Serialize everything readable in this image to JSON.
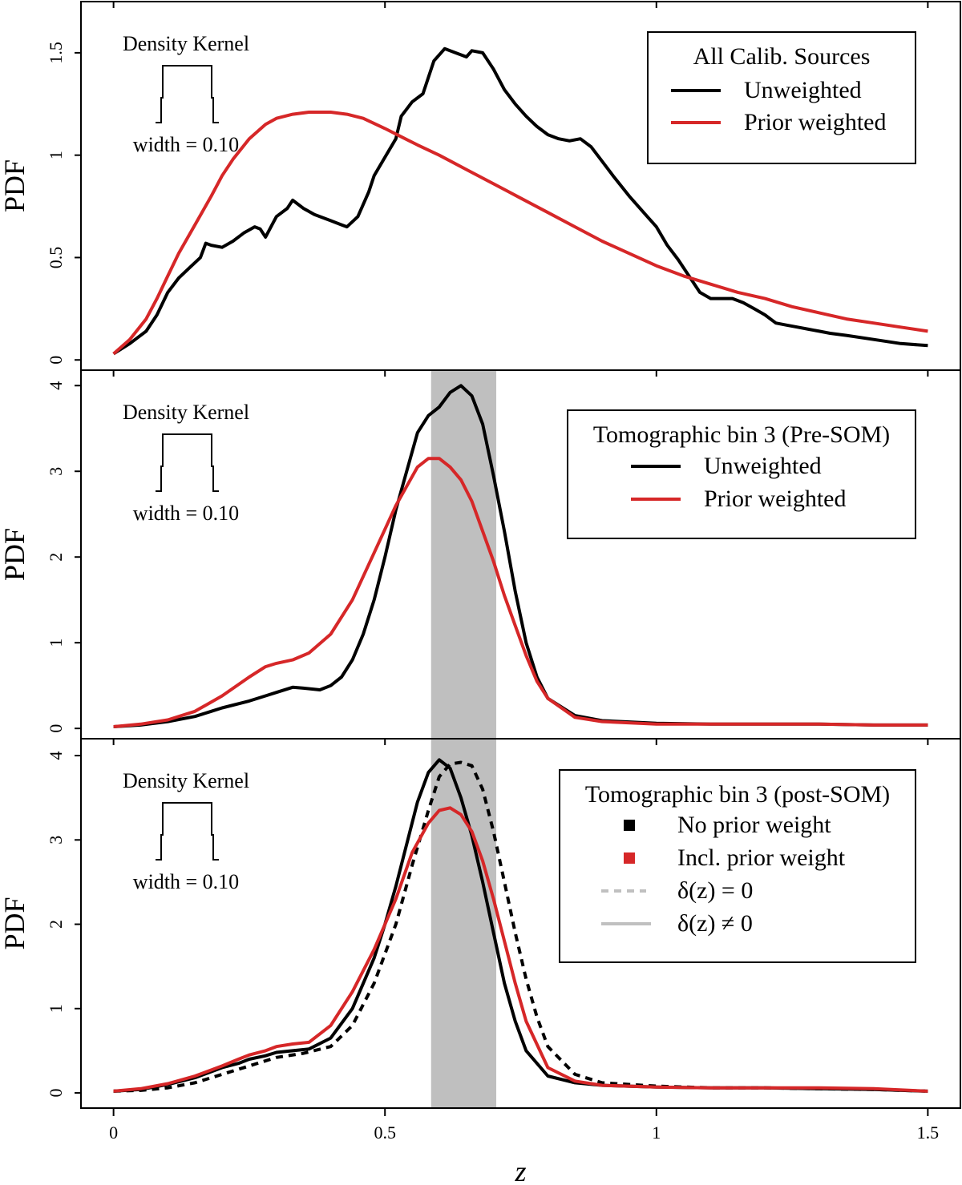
{
  "colors": {
    "black": "#000000",
    "red": "#d62728",
    "band": "#bfbfbf",
    "dashed_legend": "#c0c0c0",
    "solid_legend": "#c0c0c0"
  },
  "x_axis": {
    "label": "z",
    "ticks": [
      0,
      0.5,
      1,
      1.5
    ],
    "tick_labels": [
      "0",
      "0.5",
      "1",
      "1.5"
    ],
    "xlim": [
      -0.06,
      1.56
    ]
  },
  "y_label": "PDF",
  "chart_data": [
    {
      "type": "line",
      "title": "",
      "ylabel": "PDF",
      "xlabel": "z",
      "ylim": [
        -0.05,
        1.75
      ],
      "yticks": [
        0,
        0.5,
        1,
        1.5
      ],
      "ytick_labels": [
        "0",
        "0.5",
        "1",
        "1.5"
      ],
      "highlight_band": null,
      "kernel": {
        "title": "Density Kernel",
        "label": "width = 0.10"
      },
      "legend": {
        "title": "All Calib. Sources",
        "entries": [
          {
            "label": "Unweighted",
            "color": "#000000",
            "style": "line"
          },
          {
            "label": "Prior weighted",
            "color": "#d62728",
            "style": "line"
          }
        ]
      },
      "series": [
        {
          "name": "Unweighted",
          "color": "#000000",
          "dash": false,
          "x": [
            0,
            0.03,
            0.06,
            0.08,
            0.1,
            0.12,
            0.14,
            0.16,
            0.17,
            0.18,
            0.2,
            0.22,
            0.24,
            0.26,
            0.27,
            0.28,
            0.3,
            0.32,
            0.33,
            0.35,
            0.37,
            0.4,
            0.42,
            0.43,
            0.45,
            0.47,
            0.48,
            0.5,
            0.52,
            0.53,
            0.55,
            0.57,
            0.59,
            0.61,
            0.63,
            0.65,
            0.66,
            0.68,
            0.7,
            0.72,
            0.74,
            0.76,
            0.78,
            0.8,
            0.82,
            0.84,
            0.86,
            0.88,
            0.9,
            0.92,
            0.95,
            0.98,
            1,
            1.02,
            1.04,
            1.06,
            1.08,
            1.1,
            1.12,
            1.14,
            1.16,
            1.18,
            1.2,
            1.22,
            1.24,
            1.26,
            1.28,
            1.3,
            1.32,
            1.35,
            1.4,
            1.45,
            1.5
          ],
          "y": [
            0.03,
            0.08,
            0.14,
            0.22,
            0.33,
            0.4,
            0.45,
            0.5,
            0.57,
            0.56,
            0.55,
            0.58,
            0.62,
            0.65,
            0.64,
            0.6,
            0.7,
            0.74,
            0.78,
            0.74,
            0.71,
            0.68,
            0.66,
            0.65,
            0.7,
            0.82,
            0.9,
            0.99,
            1.08,
            1.19,
            1.26,
            1.3,
            1.46,
            1.52,
            1.5,
            1.48,
            1.51,
            1.5,
            1.42,
            1.32,
            1.25,
            1.19,
            1.14,
            1.1,
            1.08,
            1.07,
            1.08,
            1.04,
            0.97,
            0.9,
            0.8,
            0.71,
            0.65,
            0.56,
            0.49,
            0.41,
            0.33,
            0.3,
            0.3,
            0.3,
            0.28,
            0.25,
            0.22,
            0.18,
            0.17,
            0.16,
            0.15,
            0.14,
            0.13,
            0.12,
            0.1,
            0.08,
            0.07
          ]
        },
        {
          "name": "Prior weighted",
          "color": "#d62728",
          "dash": false,
          "x": [
            0,
            0.03,
            0.06,
            0.08,
            0.1,
            0.12,
            0.15,
            0.18,
            0.2,
            0.22,
            0.25,
            0.28,
            0.3,
            0.33,
            0.36,
            0.4,
            0.43,
            0.46,
            0.5,
            0.53,
            0.56,
            0.6,
            0.65,
            0.7,
            0.75,
            0.8,
            0.85,
            0.9,
            0.95,
            1,
            1.05,
            1.1,
            1.15,
            1.2,
            1.25,
            1.3,
            1.35,
            1.4,
            1.45,
            1.5
          ],
          "y": [
            0.03,
            0.1,
            0.2,
            0.3,
            0.41,
            0.52,
            0.66,
            0.8,
            0.9,
            0.98,
            1.08,
            1.15,
            1.18,
            1.2,
            1.21,
            1.21,
            1.2,
            1.18,
            1.13,
            1.09,
            1.05,
            1.0,
            0.93,
            0.86,
            0.79,
            0.72,
            0.65,
            0.58,
            0.52,
            0.46,
            0.41,
            0.37,
            0.33,
            0.3,
            0.26,
            0.23,
            0.2,
            0.18,
            0.16,
            0.14
          ]
        }
      ]
    },
    {
      "type": "line",
      "title": "",
      "ylabel": "PDF",
      "xlabel": "z",
      "ylim": [
        -0.12,
        4.18
      ],
      "yticks": [
        0,
        1,
        2,
        3,
        4
      ],
      "ytick_labels": [
        "0",
        "1",
        "2",
        "3",
        "4"
      ],
      "highlight_band": [
        0.585,
        0.705
      ],
      "kernel": {
        "title": "Density Kernel",
        "label": "width = 0.10"
      },
      "legend": {
        "title": "Tomographic bin 3 (Pre-SOM)",
        "entries": [
          {
            "label": "Unweighted",
            "color": "#000000",
            "style": "line"
          },
          {
            "label": "Prior weighted",
            "color": "#d62728",
            "style": "line"
          }
        ]
      },
      "series": [
        {
          "name": "Unweighted",
          "color": "#000000",
          "dash": false,
          "x": [
            0,
            0.05,
            0.1,
            0.15,
            0.18,
            0.2,
            0.25,
            0.28,
            0.3,
            0.33,
            0.35,
            0.38,
            0.4,
            0.42,
            0.44,
            0.46,
            0.48,
            0.5,
            0.52,
            0.54,
            0.56,
            0.58,
            0.6,
            0.62,
            0.64,
            0.66,
            0.68,
            0.7,
            0.72,
            0.74,
            0.76,
            0.78,
            0.8,
            0.85,
            0.9,
            1,
            1.1,
            1.2,
            1.3,
            1.4,
            1.5
          ],
          "y": [
            0.02,
            0.04,
            0.08,
            0.14,
            0.2,
            0.24,
            0.32,
            0.38,
            0.42,
            0.48,
            0.47,
            0.45,
            0.5,
            0.6,
            0.8,
            1.1,
            1.5,
            2.0,
            2.55,
            3.0,
            3.45,
            3.65,
            3.75,
            3.92,
            4.0,
            3.88,
            3.55,
            2.95,
            2.3,
            1.6,
            1.0,
            0.6,
            0.35,
            0.15,
            0.09,
            0.06,
            0.05,
            0.05,
            0.05,
            0.04,
            0.04
          ]
        },
        {
          "name": "Prior weighted",
          "color": "#d62728",
          "dash": false,
          "x": [
            0,
            0.05,
            0.1,
            0.15,
            0.2,
            0.25,
            0.28,
            0.3,
            0.33,
            0.36,
            0.4,
            0.44,
            0.48,
            0.52,
            0.56,
            0.58,
            0.6,
            0.62,
            0.64,
            0.66,
            0.68,
            0.7,
            0.72,
            0.74,
            0.76,
            0.78,
            0.8,
            0.85,
            0.9,
            1,
            1.1,
            1.2,
            1.3,
            1.4,
            1.5
          ],
          "y": [
            0.02,
            0.05,
            0.1,
            0.2,
            0.38,
            0.6,
            0.72,
            0.76,
            0.8,
            0.88,
            1.1,
            1.5,
            2.05,
            2.6,
            3.05,
            3.15,
            3.15,
            3.05,
            2.9,
            2.65,
            2.3,
            1.95,
            1.55,
            1.2,
            0.85,
            0.55,
            0.35,
            0.13,
            0.08,
            0.05,
            0.05,
            0.05,
            0.05,
            0.04,
            0.04
          ]
        }
      ]
    },
    {
      "type": "line",
      "title": "",
      "ylabel": "PDF",
      "xlabel": "z",
      "ylim": [
        -0.18,
        4.2
      ],
      "yticks": [
        0,
        1,
        2,
        3,
        4
      ],
      "ytick_labels": [
        "0",
        "1",
        "2",
        "3",
        "4"
      ],
      "highlight_band": [
        0.585,
        0.705
      ],
      "kernel": {
        "title": "Density Kernel",
        "label": "width = 0.10"
      },
      "legend": {
        "title": "Tomographic bin 3 (post-SOM)",
        "entries": [
          {
            "label": "No prior weight",
            "color": "#000000",
            "style": "square"
          },
          {
            "label": "Incl. prior weight",
            "color": "#d62728",
            "style": "square"
          },
          {
            "label": "δ(z) = 0",
            "color": "#c0c0c0",
            "style": "dash"
          },
          {
            "label": "δ(z) ≠ 0",
            "color": "#c0c0c0",
            "style": "line"
          }
        ]
      },
      "series": [
        {
          "name": "No prior weight, δ(z) ≠ 0",
          "color": "#000000",
          "dash": false,
          "x": [
            0,
            0.05,
            0.1,
            0.15,
            0.2,
            0.23,
            0.25,
            0.28,
            0.3,
            0.33,
            0.36,
            0.4,
            0.44,
            0.48,
            0.5,
            0.52,
            0.54,
            0.56,
            0.58,
            0.6,
            0.62,
            0.64,
            0.66,
            0.68,
            0.7,
            0.72,
            0.74,
            0.76,
            0.8,
            0.85,
            0.9,
            1,
            1.1,
            1.2,
            1.3,
            1.4,
            1.5
          ],
          "y": [
            0.02,
            0.04,
            0.1,
            0.18,
            0.3,
            0.35,
            0.4,
            0.44,
            0.48,
            0.5,
            0.52,
            0.65,
            1.0,
            1.6,
            2.0,
            2.45,
            2.95,
            3.45,
            3.8,
            3.95,
            3.85,
            3.5,
            3.05,
            2.5,
            1.9,
            1.3,
            0.85,
            0.5,
            0.2,
            0.12,
            0.09,
            0.07,
            0.06,
            0.06,
            0.05,
            0.04,
            0.02
          ]
        },
        {
          "name": "No prior weight, δ(z) = 0",
          "color": "#000000",
          "dash": true,
          "x": [
            0,
            0.05,
            0.1,
            0.15,
            0.2,
            0.25,
            0.3,
            0.35,
            0.4,
            0.44,
            0.48,
            0.52,
            0.55,
            0.58,
            0.6,
            0.62,
            0.64,
            0.66,
            0.68,
            0.7,
            0.72,
            0.74,
            0.76,
            0.78,
            0.8,
            0.85,
            0.9,
            1,
            1.1,
            1.2,
            1.3,
            1.4,
            1.5
          ],
          "y": [
            0.02,
            0.03,
            0.06,
            0.12,
            0.22,
            0.32,
            0.42,
            0.47,
            0.55,
            0.8,
            1.3,
            2.0,
            2.7,
            3.35,
            3.75,
            3.9,
            3.92,
            3.88,
            3.6,
            3.1,
            2.5,
            1.9,
            1.35,
            0.9,
            0.55,
            0.22,
            0.12,
            0.08,
            0.06,
            0.06,
            0.05,
            0.04,
            0.02
          ]
        },
        {
          "name": "Incl. prior weight, δ(z) ≠ 0",
          "color": "#d62728",
          "dash": false,
          "x": [
            0,
            0.05,
            0.1,
            0.15,
            0.2,
            0.23,
            0.25,
            0.28,
            0.3,
            0.33,
            0.36,
            0.4,
            0.44,
            0.48,
            0.52,
            0.55,
            0.58,
            0.6,
            0.62,
            0.64,
            0.66,
            0.68,
            0.7,
            0.72,
            0.74,
            0.76,
            0.8,
            0.85,
            0.9,
            1,
            1.1,
            1.2,
            1.3,
            1.4,
            1.5
          ],
          "y": [
            0.02,
            0.05,
            0.11,
            0.2,
            0.32,
            0.4,
            0.45,
            0.5,
            0.55,
            0.58,
            0.6,
            0.8,
            1.2,
            1.7,
            2.3,
            2.85,
            3.2,
            3.35,
            3.38,
            3.3,
            3.1,
            2.75,
            2.3,
            1.8,
            1.3,
            0.85,
            0.3,
            0.14,
            0.09,
            0.07,
            0.06,
            0.06,
            0.06,
            0.05,
            0.02
          ]
        }
      ]
    }
  ]
}
